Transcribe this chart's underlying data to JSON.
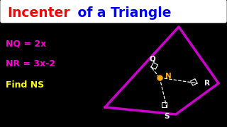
{
  "bg_color": "#000000",
  "title_word1": "Incenter",
  "title_word1_color": "#ff0000",
  "title_word2": " of a Triangle",
  "title_word2_color": "#0000ff",
  "eq1_text": "NQ = 2x",
  "eq1_color": "#ff00cc",
  "eq2_text": "NR = 3x-2",
  "eq2_color": "#ff00cc",
  "eq3_text": "Find NS",
  "eq3_color": "#ffff00",
  "triangle_color": "#cc00cc",
  "triangle_lw": 2.5,
  "incenter_color": "#ffaa00",
  "dashed_color": "#ffffff",
  "label_color": "#ffffff",
  "N_color": "#ffaa00"
}
